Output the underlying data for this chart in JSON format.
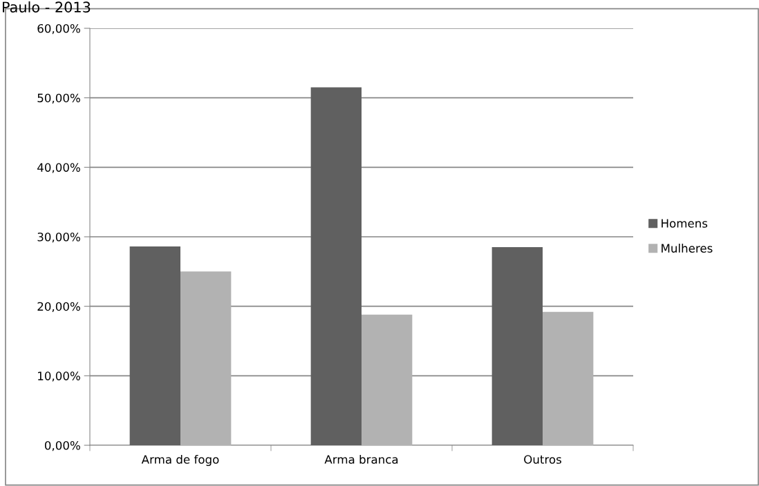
{
  "chart_data": {
    "type": "bar",
    "title": "Paulo - 2013",
    "categories": [
      "Arma de fogo",
      "Arma branca",
      "Outros"
    ],
    "series": [
      {
        "name": "Homens",
        "color": "#606060",
        "values": [
          28.6,
          51.5,
          28.5
        ]
      },
      {
        "name": "Mulheres",
        "color": "#b2b2b2",
        "values": [
          25.0,
          18.8,
          19.2
        ]
      }
    ],
    "ylim": [
      0,
      60
    ],
    "yticks": [
      {
        "value": 0,
        "label": "0,00%"
      },
      {
        "value": 10,
        "label": "10,00%"
      },
      {
        "value": 20,
        "label": "20,00%"
      },
      {
        "value": 30,
        "label": "30,00%"
      },
      {
        "value": 40,
        "label": "40,00%"
      },
      {
        "value": 50,
        "label": "50,00%"
      },
      {
        "value": 60,
        "label": "60,00%"
      }
    ],
    "grid": "y",
    "legend": "right"
  }
}
